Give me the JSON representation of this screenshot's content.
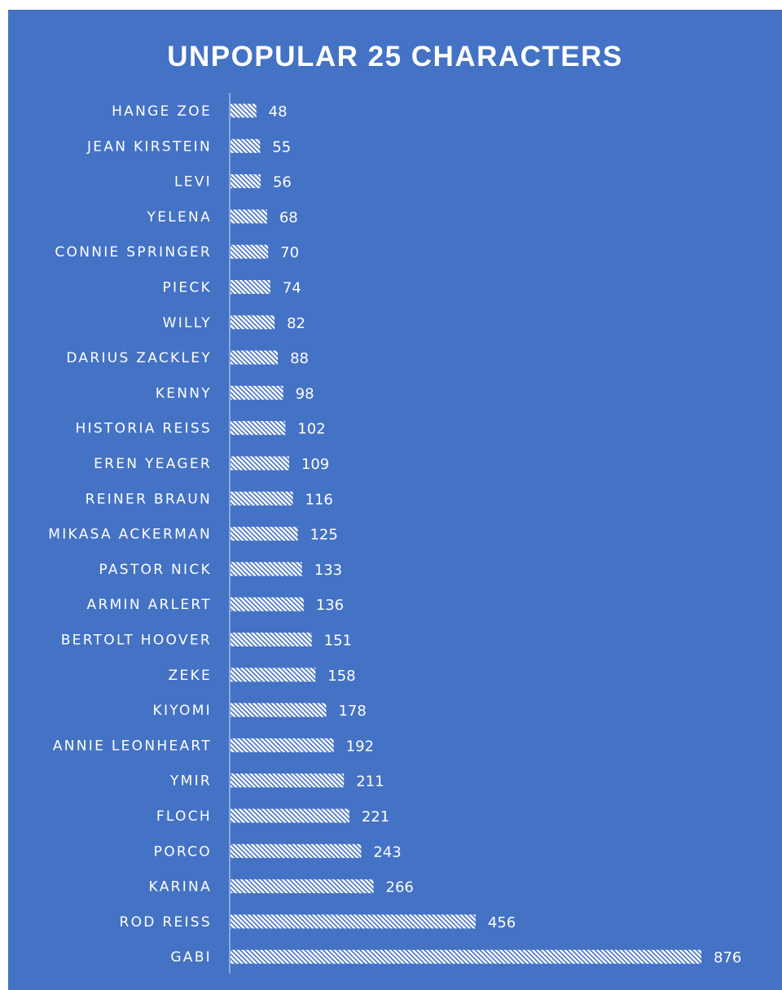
{
  "chart_data": {
    "type": "bar",
    "orientation": "horizontal",
    "title": "UNPOPULAR 25 CHARACTERS",
    "xlabel": "",
    "ylabel": "",
    "grid": false,
    "legend": "none",
    "fill": "diagonal hatch",
    "colors": {
      "background": "#4472c4",
      "bar": "#ffffff",
      "hatch": "#4472c4",
      "text": "#ffffff",
      "axis": "#d9e2f3"
    },
    "categories": [
      "HANGE ZOE",
      "JEAN KIRSTEIN",
      "LEVI",
      "YELENA",
      "CONNIE SPRINGER",
      "PIECK",
      "WILLY",
      "DARIUS ZACKLEY",
      "KENNY",
      "HISTORIA REISS",
      "EREN YEAGER",
      "REINER BRAUN",
      "MIKASA ACKERMAN",
      "PASTOR NICK",
      "ARMIN ARLERT",
      "BERTOLT HOOVER",
      "ZEKE",
      "KIYOMI",
      "ANNIE LEONHEART",
      "YMIR",
      "FLOCH",
      "PORCO",
      "KARINA",
      "ROD REISS",
      "GABI"
    ],
    "values": [
      48,
      55,
      56,
      68,
      70,
      74,
      82,
      88,
      98,
      102,
      109,
      116,
      125,
      133,
      136,
      151,
      158,
      178,
      192,
      211,
      221,
      243,
      266,
      456,
      876
    ]
  }
}
